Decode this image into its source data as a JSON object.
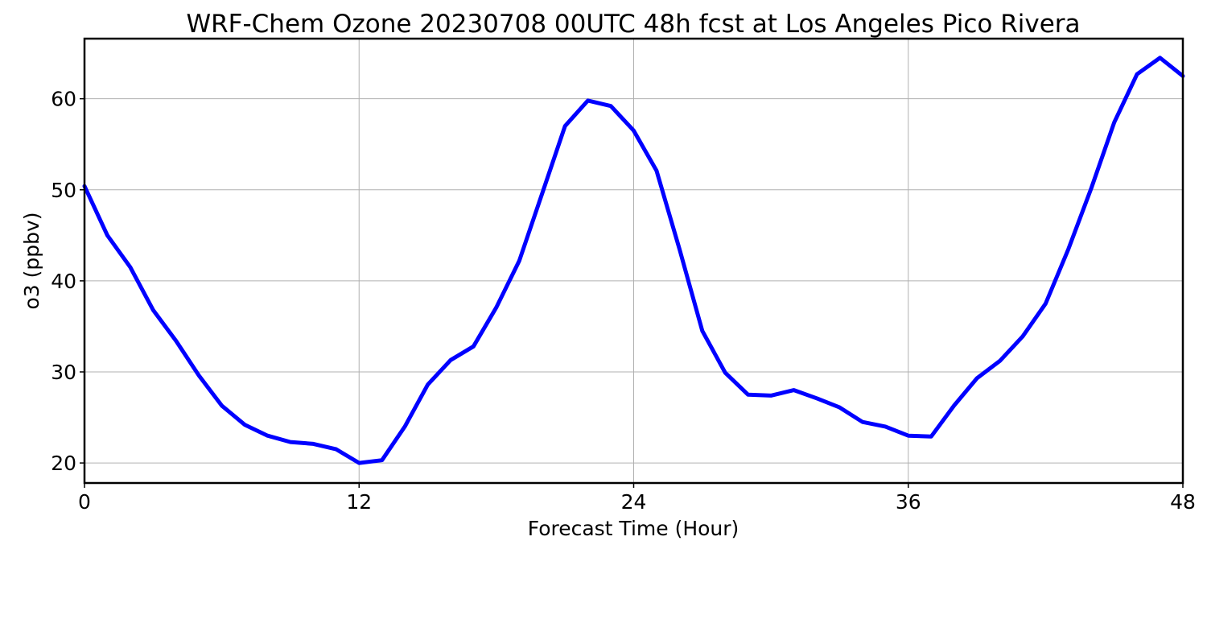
{
  "chart_data": {
    "type": "line",
    "title": "WRF-Chem Ozone  20230708 00UTC 48h fcst at Los Angeles Pico Rivera",
    "xlabel": "Forecast Time (Hour)",
    "ylabel": "o3  (ppbv)",
    "xlim": [
      0,
      48
    ],
    "ylim": [
      17.8,
      66.6
    ],
    "xticks": [
      0,
      12,
      24,
      36,
      48
    ],
    "yticks": [
      20,
      30,
      40,
      50,
      60
    ],
    "grid": true,
    "series": [
      {
        "color": "#0000ff",
        "x": [
          0,
          1,
          2,
          3,
          4,
          5,
          6,
          7,
          8,
          9,
          10,
          11,
          12,
          13,
          14,
          15,
          16,
          17,
          18,
          19,
          20,
          21,
          22,
          23,
          24,
          25,
          26,
          27,
          28,
          29,
          30,
          31,
          32,
          33,
          34,
          35,
          36,
          37,
          38,
          39,
          40,
          41,
          42,
          43,
          44,
          45,
          46,
          47,
          48
        ],
        "values": [
          50.4,
          45.0,
          41.5,
          36.8,
          33.4,
          29.6,
          26.3,
          24.2,
          23.0,
          22.3,
          22.1,
          21.5,
          20.0,
          20.3,
          24.0,
          28.6,
          31.3,
          32.8,
          37.1,
          42.2,
          49.6,
          57.0,
          59.8,
          59.2,
          56.5,
          52.1,
          43.5,
          34.5,
          29.9,
          27.5,
          27.4,
          28.0,
          27.1,
          26.1,
          24.5,
          24.0,
          23.0,
          22.9,
          26.3,
          29.3,
          31.2,
          33.9,
          37.5,
          43.5,
          50.2,
          57.4,
          62.7,
          64.5,
          62.5
        ]
      }
    ]
  }
}
